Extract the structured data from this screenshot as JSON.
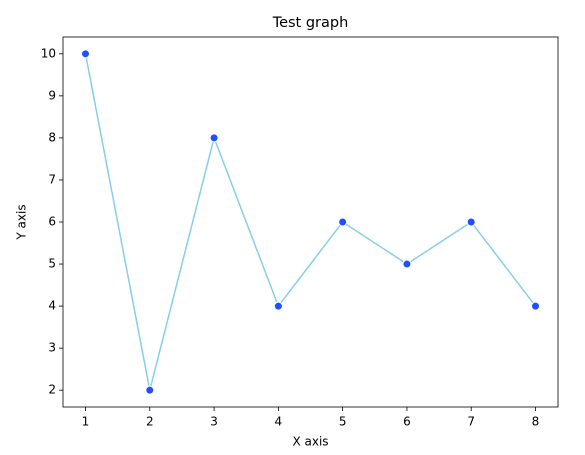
{
  "chart_data": {
    "type": "line",
    "title": "Test graph",
    "x_label": "X axis",
    "y_label": "Y axis",
    "x": [
      1,
      2,
      3,
      4,
      5,
      6,
      7,
      8
    ],
    "series": [
      {
        "values": [
          10,
          2,
          8,
          4,
          6,
          5,
          6,
          4
        ],
        "color": "#87ceeb",
        "marker_color": "#1f4fff"
      }
    ],
    "xlim": [
      0.65,
      8.35
    ],
    "xticks": [
      1,
      2,
      3,
      4,
      5,
      6,
      7,
      8
    ],
    "ylim": [
      1.6,
      10.4
    ],
    "yticks": [
      2,
      3,
      4,
      5,
      6,
      7,
      8,
      9,
      10
    ],
    "grid": false
  }
}
